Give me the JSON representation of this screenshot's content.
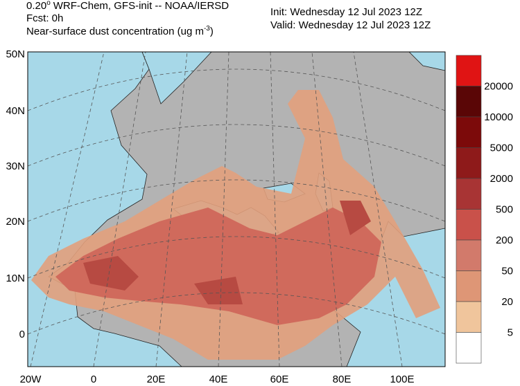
{
  "header": {
    "title_number": "0.20",
    "title_degree": "o",
    "title_rest": "WRF-Chem, GFS-init -- NOAA/IERSD",
    "forecast": "Fcst: 0h",
    "variable": "Near-surface dust concentration (ug m",
    "variable_exponent": "-3",
    "variable_close": ")",
    "init": "Init: Wednesday 12 Jul 2023  12Z",
    "valid": "Valid: Wednesday 12 Jul 2023  12Z"
  },
  "map": {
    "lat_labels": [
      "50N",
      "40N",
      "30N",
      "20N",
      "10N",
      "0"
    ],
    "lon_labels": [
      "20W",
      "0",
      "20E",
      "40E",
      "60E",
      "80E",
      "100E"
    ]
  },
  "colorbar": {
    "colors": [
      "#e01414",
      "#5a0606",
      "#7c0a0a",
      "#8e1a1a",
      "#a83434",
      "#c9514a",
      "#d27a6b",
      "#de9676",
      "#f0c59c",
      "#ffffff"
    ],
    "labels": [
      20000,
      10000,
      5000,
      2000,
      500,
      200,
      50,
      20,
      5
    ]
  }
}
